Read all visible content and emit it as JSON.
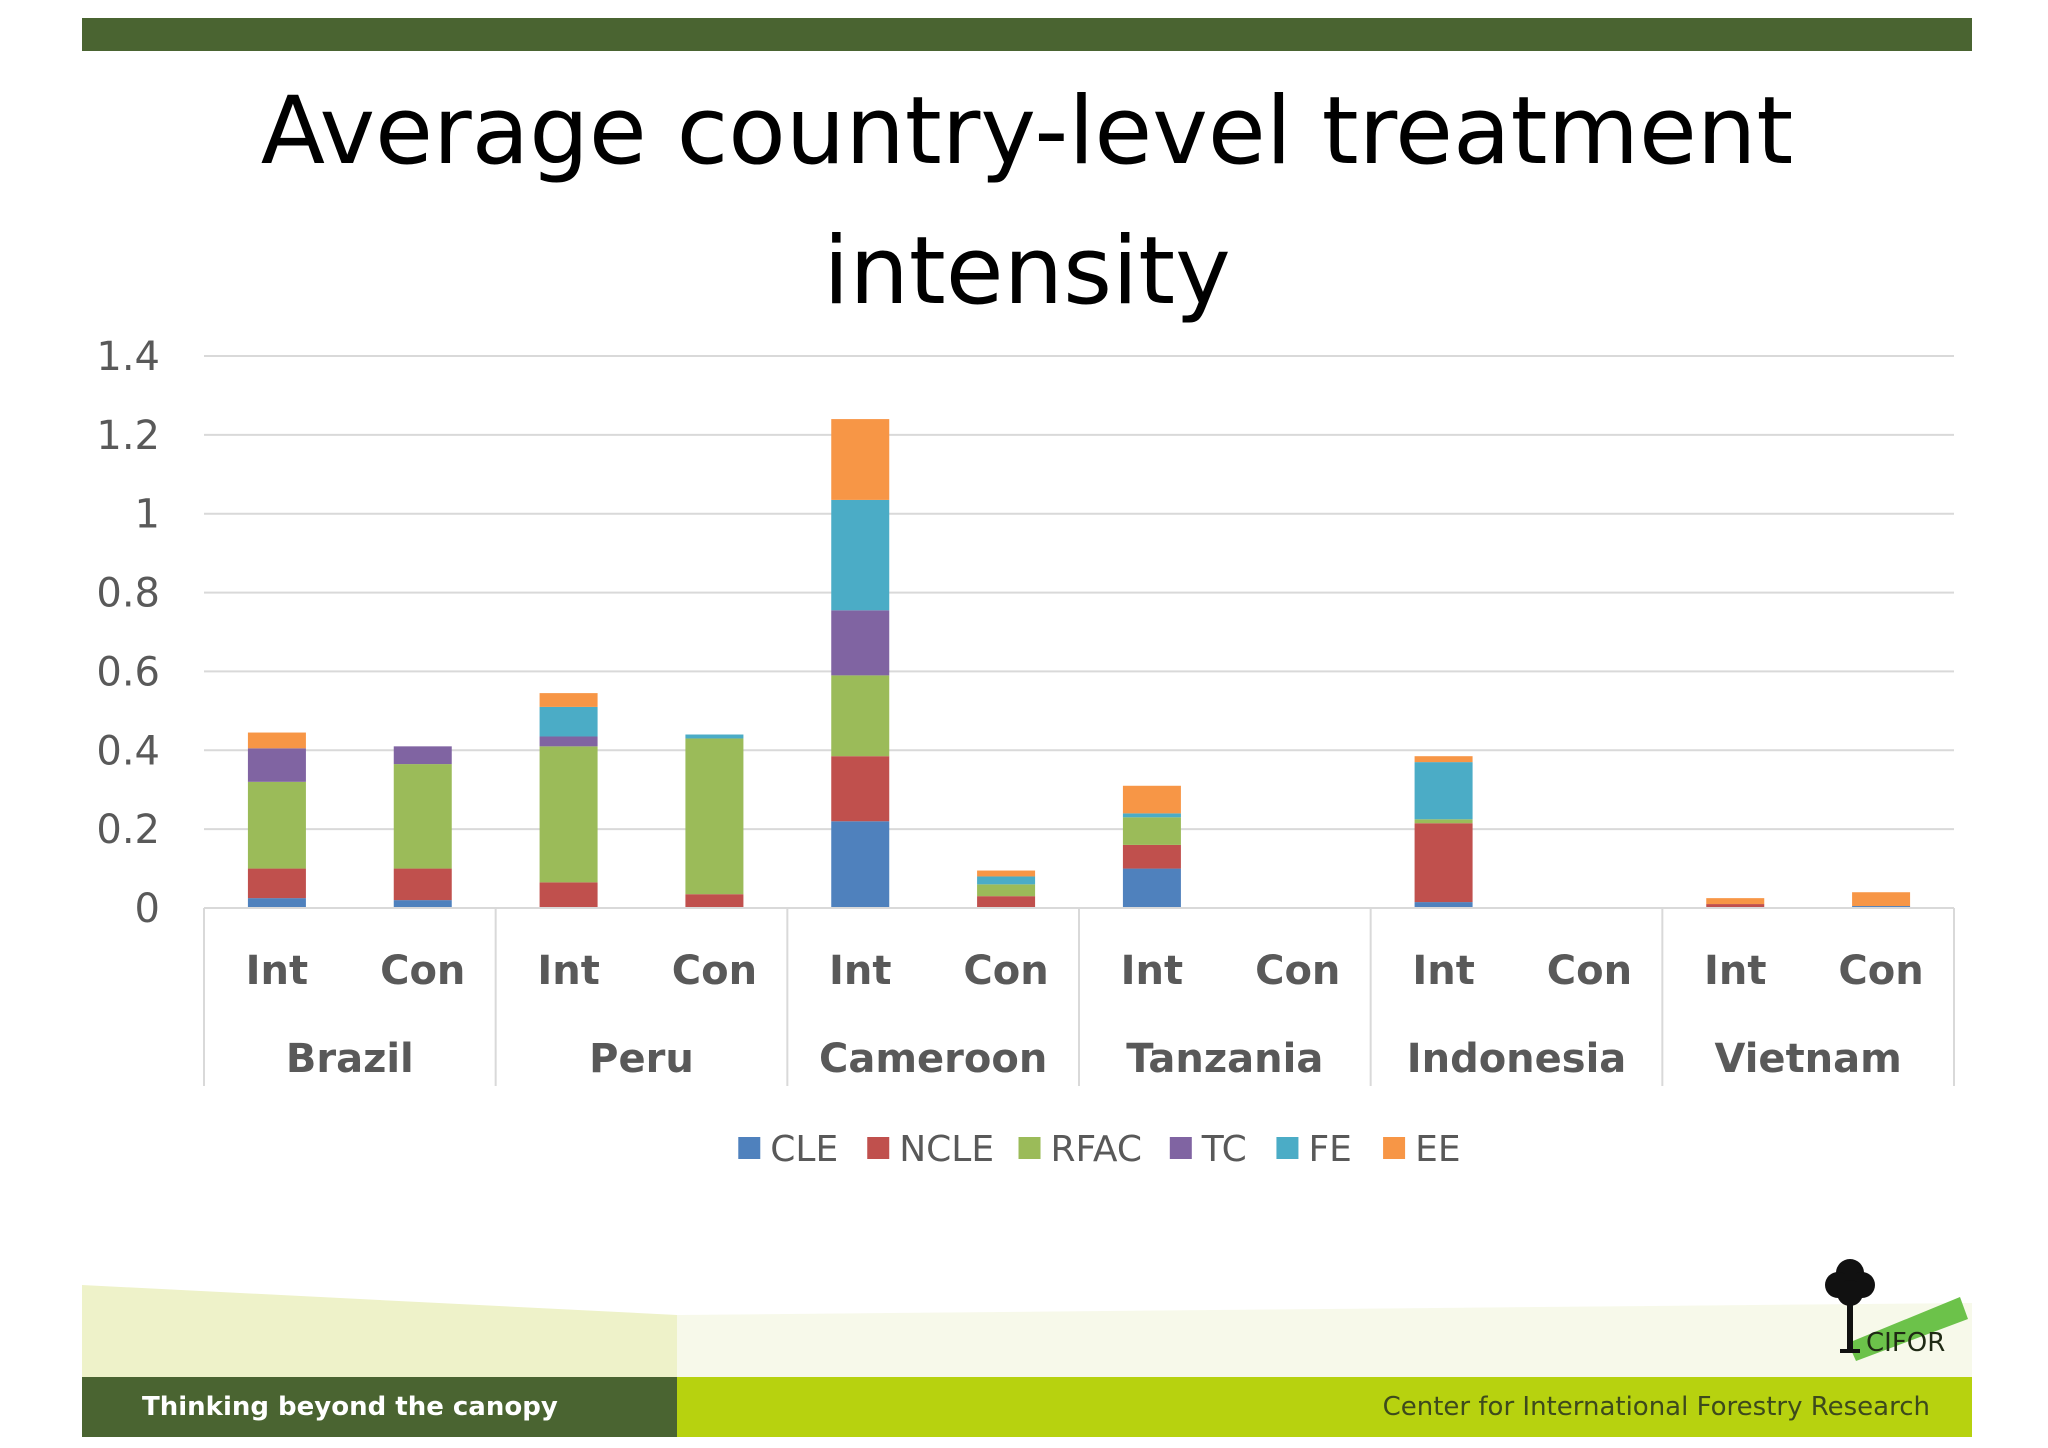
{
  "slide": {
    "title_line1": "Average country-level treatment",
    "title_line2": "intensity",
    "tagline": "Thinking beyond the canopy",
    "organization": "Center for International Forestry Research",
    "logo_text": "CIFOR"
  },
  "colors": {
    "CLE": "#4f81bd",
    "NCLE": "#c0504d",
    "RFAC": "#9bbb59",
    "TC": "#8064a2",
    "FE": "#4bacc6",
    "EE": "#f79646",
    "top_bar": "#4a6431",
    "footer_green": "#b7d20f"
  },
  "chart_data": {
    "type": "bar",
    "stacked": true,
    "title": "",
    "xlabel": "",
    "ylabel": "",
    "ylim": [
      0,
      1.4
    ],
    "yticks": [
      "0",
      "0.2",
      "0.4",
      "0.6",
      "0.8",
      "1",
      "1.2",
      "1.4"
    ],
    "grid": true,
    "legend_position": "bottom",
    "groups": [
      "Brazil",
      "Peru",
      "Cameroon",
      "Tanzania",
      "Indonesia",
      "Vietnam"
    ],
    "subcategories": [
      "Int",
      "Con"
    ],
    "categories": [
      "Brazil Int",
      "Brazil Con",
      "Peru Int",
      "Peru Con",
      "Cameroon Int",
      "Cameroon Con",
      "Tanzania Int",
      "Tanzania Con",
      "Indonesia Int",
      "Indonesia Con",
      "Vietnam Int",
      "Vietnam Con"
    ],
    "series": [
      {
        "name": "CLE",
        "values": [
          0.025,
          0.02,
          0,
          0,
          0.22,
          0,
          0.1,
          0,
          0.015,
          0,
          0,
          0.005
        ]
      },
      {
        "name": "NCLE",
        "values": [
          0.075,
          0.08,
          0.065,
          0.035,
          0.165,
          0.03,
          0.06,
          0,
          0.2,
          0,
          0.01,
          0
        ]
      },
      {
        "name": "RFAC",
        "values": [
          0.22,
          0.265,
          0.345,
          0.395,
          0.205,
          0.03,
          0.07,
          0,
          0.01,
          0,
          0,
          0
        ]
      },
      {
        "name": "TC",
        "values": [
          0.085,
          0.045,
          0.025,
          0,
          0.165,
          0,
          0,
          0,
          0,
          0,
          0,
          0
        ]
      },
      {
        "name": "FE",
        "values": [
          0,
          0,
          0.075,
          0.01,
          0.28,
          0.02,
          0.01,
          0,
          0.145,
          0,
          0,
          0
        ]
      },
      {
        "name": "EE",
        "values": [
          0.04,
          0,
          0.035,
          0,
          0.205,
          0.015,
          0.07,
          0,
          0.015,
          0,
          0.015,
          0.035
        ]
      }
    ]
  }
}
